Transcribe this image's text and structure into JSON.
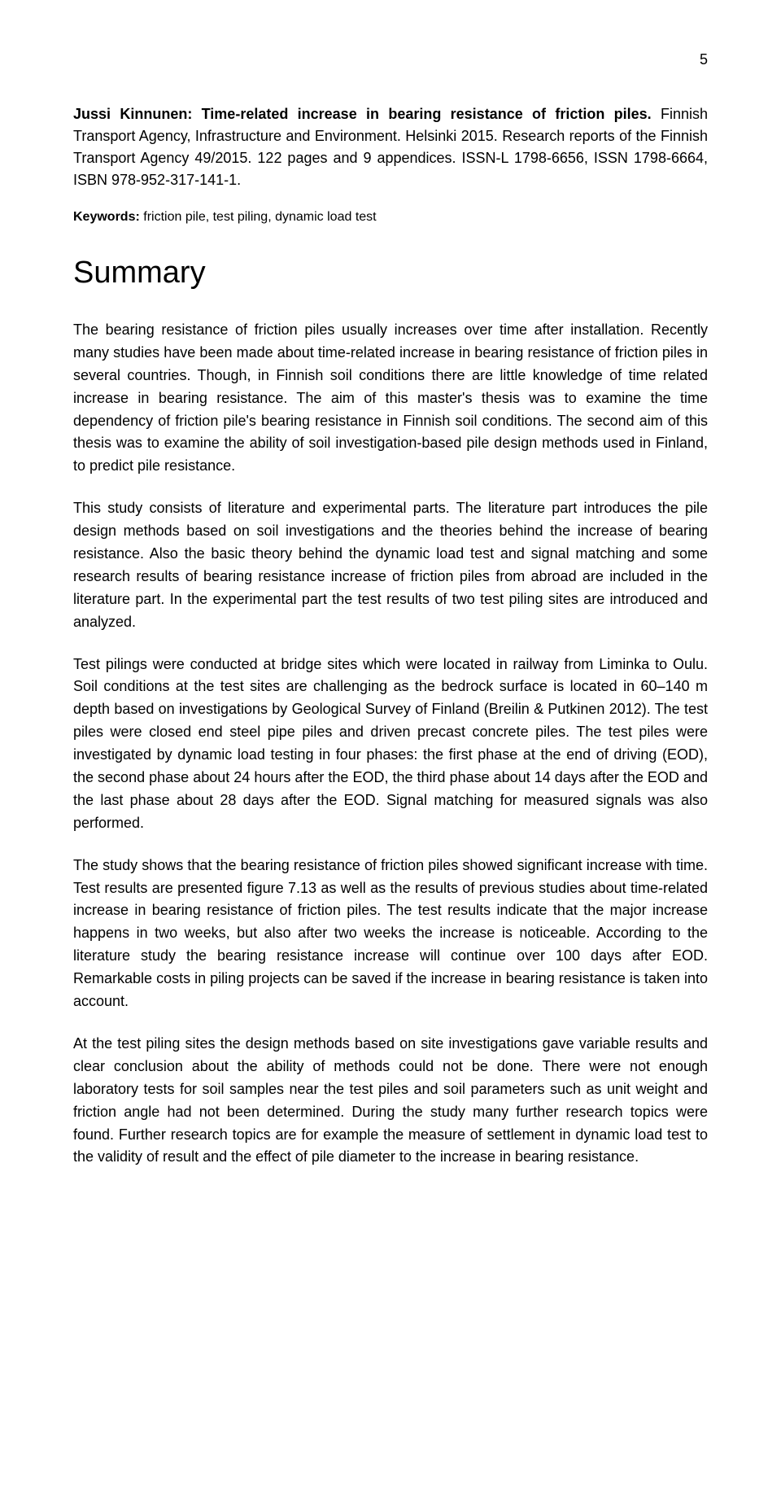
{
  "page_number": "5",
  "citation": {
    "author_title": "Jussi Kinnunen: Time-related increase in bearing resistance of friction piles.",
    "rest": " Finnish Transport Agency, Infrastructure and Environment. Helsinki 2015. Research reports of the Finnish Transport Agency 49/2015. 122 pages and 9 appendices. ISSN-L 1798-6656, ISSN 1798-6664, ISBN 978-952-317-141-1."
  },
  "keywords": {
    "label": "Keywords:",
    "text": " friction pile, test piling, dynamic load test"
  },
  "summary_heading": "Summary",
  "paragraphs": [
    "The bearing resistance of friction piles usually increases over time after installation. Recently many studies have been made about time-related increase in bearing resistance of friction piles in several countries. Though, in Finnish soil conditions there are little knowledge of time related increase in bearing resistance. The aim of this master's thesis was to examine the time dependency of friction pile's bearing resistance in Finnish soil conditions. The second aim of this thesis was to examine the ability of soil investigation-based pile design methods used in Finland, to predict pile resistance.",
    "This study consists of literature and experimental parts. The literature part introduces the pile design methods based on soil investigations and the theories behind the increase of bearing resistance. Also the basic theory behind the dynamic load test and signal matching and some research results of bearing resistance increase of friction piles from abroad are included in the literature part. In the experimental part the test results of two test piling sites are introduced and analyzed.",
    "Test pilings were conducted at bridge sites which were located in railway from Liminka to Oulu. Soil conditions at the test sites are challenging as the bedrock surface is located in 60–140 m depth based on investigations by Geological Survey of Finland (Breilin & Putkinen 2012). The test piles were closed end steel pipe piles and driven precast concrete piles. The test piles were investigated by dynamic load testing in four phases: the first phase at the end of driving (EOD), the second phase about 24 hours after the EOD, the third phase about 14 days after the EOD and the last phase about 28 days after the EOD. Signal matching for measured signals was also performed.",
    "The study shows that the bearing resistance of friction piles showed significant increase with time. Test results are presented figure 7.13 as well as the results of previous studies about time-related increase in bearing resistance of friction piles. The test results indicate that the major increase happens in two weeks, but also after two weeks the increase is noticeable. According to the literature study the bearing resistance increase will continue over 100 days after EOD. Remarkable costs in piling projects can be saved if the increase in bearing resistance is taken into account.",
    "At the test piling sites the design methods based on site investigations gave variable results and clear conclusion about the ability of methods could not be done. There were not enough laboratory tests for soil samples near the test piles and soil parameters such as unit weight and friction angle had not been determined. During the study many further research topics were found. Further research topics are for example the measure of settlement in dynamic load test to the validity of result and the effect of pile diameter to the increase in bearing resistance."
  ]
}
